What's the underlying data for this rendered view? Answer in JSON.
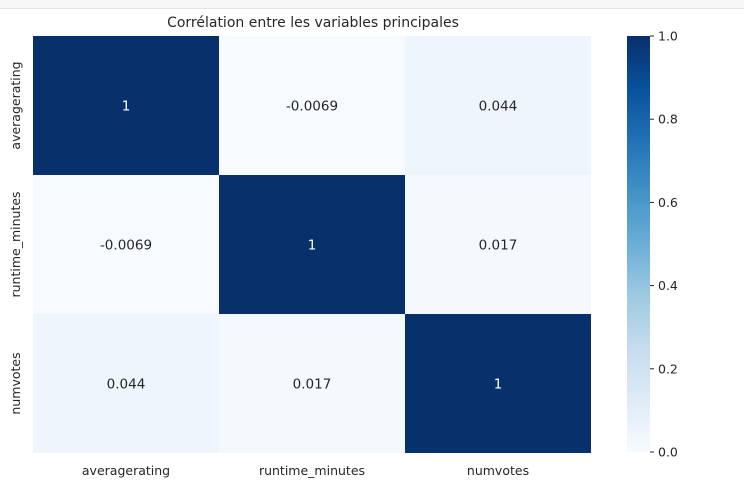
{
  "chart_data": {
    "type": "heatmap",
    "title": "Corrélation entre les variables principales",
    "x_categories": [
      "averagerating",
      "runtime_minutes",
      "numvotes"
    ],
    "y_categories": [
      "averagerating",
      "runtime_minutes",
      "numvotes"
    ],
    "values": [
      [
        1,
        -0.0069,
        0.044
      ],
      [
        -0.0069,
        1,
        0.017
      ],
      [
        0.044,
        0.017,
        1
      ]
    ],
    "annotations": [
      [
        "1",
        "-0.0069",
        "0.044"
      ],
      [
        "-0.0069",
        "1",
        "0.017"
      ],
      [
        "0.044",
        "0.017",
        "1"
      ]
    ],
    "colormap": "Blues",
    "colorbar": {
      "range": [
        0.0,
        1.0
      ],
      "ticks": [
        0.0,
        0.2,
        0.4,
        0.6,
        0.8,
        1.0
      ],
      "tick_labels": [
        "0.0",
        "0.2",
        "0.4",
        "0.6",
        "0.8",
        "1.0"
      ]
    },
    "colors": {
      "min": "#f7fbff",
      "max": "#08306b",
      "text_on_dark": "#ffffff",
      "text_on_light": "#262626"
    }
  }
}
